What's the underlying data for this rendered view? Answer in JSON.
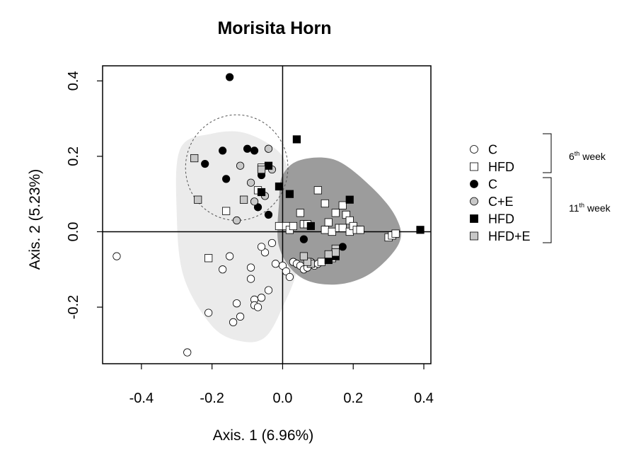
{
  "chart_data": {
    "type": "scatter",
    "title": "Morisita Horn",
    "xlabel": "Axis. 1 (6.96%)",
    "ylabel": "Axis. 2 (5.23%)",
    "xlim": [
      -0.51,
      0.42
    ],
    "ylim": [
      -0.35,
      0.44
    ],
    "xticks": [
      -0.4,
      -0.2,
      0.0,
      0.2,
      0.4
    ],
    "xtick_labels": [
      "-0.4",
      "-0.2",
      "0.0",
      "0.2",
      "0.4"
    ],
    "yticks": [
      0.4,
      0.2,
      0.0,
      -0.2
    ],
    "ytick_labels": [
      "0.4",
      "0.2",
      "0.0",
      "-0.2"
    ],
    "reference_lines": {
      "x": 0,
      "y": 0
    },
    "grid": false,
    "legend_position": "right",
    "legend_groups": [
      {
        "label_base": "6",
        "label_sup": "th",
        "label_rest": " week"
      },
      {
        "label_base": "11",
        "label_sup": "th",
        "label_rest": " week"
      }
    ],
    "regions": [
      {
        "color": "#ebebeb",
        "points": [
          [
            -0.29,
            0.22
          ],
          [
            -0.2,
            0.26
          ],
          [
            -0.1,
            0.26
          ],
          [
            0.0,
            0.2
          ],
          [
            0.02,
            0.1
          ],
          [
            0.03,
            0.0
          ],
          [
            0.04,
            -0.1
          ],
          [
            0.0,
            -0.2
          ],
          [
            -0.05,
            -0.28
          ],
          [
            -0.12,
            -0.29
          ],
          [
            -0.2,
            -0.25
          ],
          [
            -0.28,
            -0.12
          ],
          [
            -0.3,
            0.05
          ]
        ]
      },
      {
        "color": "#9c9c9c",
        "points": [
          [
            0.0,
            0.15
          ],
          [
            0.05,
            0.19
          ],
          [
            0.15,
            0.19
          ],
          [
            0.25,
            0.12
          ],
          [
            0.32,
            0.04
          ],
          [
            0.33,
            -0.03
          ],
          [
            0.25,
            -0.11
          ],
          [
            0.15,
            -0.14
          ],
          [
            0.05,
            -0.12
          ],
          [
            -0.01,
            -0.04
          ],
          [
            -0.01,
            0.08
          ]
        ]
      }
    ],
    "ellipse": {
      "cx": -0.13,
      "cy": 0.17,
      "rx": 0.145,
      "ry": 0.14
    },
    "series": [
      {
        "name": "C",
        "marker": "circle",
        "fill": "#ffffff",
        "x": [
          -0.47,
          -0.27,
          -0.21,
          -0.17,
          -0.15,
          -0.14,
          -0.13,
          -0.12,
          -0.09,
          -0.09,
          -0.08,
          -0.08,
          -0.07,
          -0.06,
          -0.05,
          -0.04,
          -0.03,
          -0.02,
          0.0,
          0.01,
          0.02,
          0.03,
          0.04,
          0.05,
          0.06,
          0.07,
          0.08,
          0.09,
          0.1,
          -0.06
        ],
        "y": [
          -0.065,
          -0.32,
          -0.215,
          -0.1,
          -0.065,
          -0.24,
          -0.19,
          -0.225,
          -0.095,
          -0.125,
          -0.18,
          -0.195,
          -0.2,
          -0.175,
          -0.055,
          -0.155,
          -0.03,
          -0.085,
          -0.09,
          -0.105,
          -0.12,
          -0.08,
          -0.085,
          -0.09,
          -0.1,
          -0.095,
          -0.08,
          -0.09,
          -0.085,
          -0.04
        ]
      },
      {
        "name": "HFD",
        "marker": "square",
        "fill": "#ffffff",
        "x": [
          -0.21,
          -0.16,
          -0.07,
          -0.06,
          -0.01,
          0.01,
          0.02,
          0.03,
          0.05,
          0.06,
          0.07,
          0.1,
          0.12,
          0.12,
          0.13,
          0.14,
          0.15,
          0.16,
          0.17,
          0.17,
          0.18,
          0.19,
          0.19,
          0.2,
          0.21,
          0.22,
          0.3,
          0.31,
          0.32,
          0.11,
          0.14
        ],
        "y": [
          -0.07,
          0.055,
          0.11,
          0.17,
          0.015,
          0.015,
          0.005,
          0.015,
          0.05,
          0.02,
          0.02,
          0.11,
          0.075,
          0.005,
          0.025,
          0.0,
          0.05,
          0.01,
          0.07,
          0.01,
          0.045,
          0.03,
          0.0,
          0.015,
          0.005,
          0.005,
          -0.015,
          -0.01,
          -0.005,
          -0.08,
          -0.07
        ]
      },
      {
        "name": "C",
        "marker": "circle",
        "fill": "#000000",
        "x": [
          -0.15,
          -0.22,
          -0.17,
          -0.16,
          -0.1,
          -0.08,
          -0.07,
          -0.06,
          -0.04,
          0.06,
          0.17
        ],
        "y": [
          0.41,
          0.18,
          0.215,
          0.14,
          0.22,
          0.215,
          0.065,
          0.15,
          0.045,
          -0.02,
          -0.04
        ]
      },
      {
        "name": "C+E",
        "marker": "circle",
        "fill": "#c8c8c8",
        "x": [
          -0.12,
          -0.13,
          -0.09,
          -0.08,
          -0.05,
          -0.04,
          -0.03
        ],
        "y": [
          0.175,
          0.03,
          0.13,
          0.08,
          0.095,
          0.22,
          0.165
        ]
      },
      {
        "name": "HFD",
        "marker": "square",
        "fill": "#000000",
        "x": [
          0.04,
          -0.04,
          -0.01,
          -0.06,
          0.02,
          0.08,
          0.13,
          0.15,
          0.19,
          0.39
        ],
        "y": [
          0.245,
          0.175,
          0.12,
          0.105,
          0.1,
          0.015,
          -0.075,
          -0.065,
          0.085,
          0.005
        ]
      },
      {
        "name": "HFD+E",
        "marker": "square",
        "fill": "#c8c8c8",
        "x": [
          -0.25,
          -0.24,
          -0.11,
          -0.06,
          0.15,
          0.15,
          0.13,
          0.08,
          0.07,
          0.06
        ],
        "y": [
          0.195,
          0.085,
          0.085,
          0.165,
          -0.045,
          -0.055,
          -0.06,
          -0.085,
          -0.08,
          -0.065
        ]
      }
    ]
  }
}
